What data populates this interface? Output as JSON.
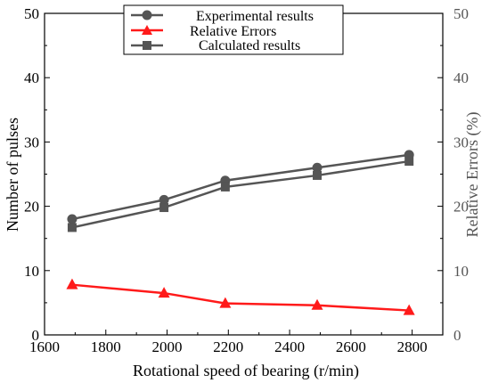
{
  "chart_data": {
    "type": "line",
    "xlabel": "Rotational speed of bearing (r/min)",
    "ylabel_left": "Number of pulses",
    "ylabel_right": "Relative Errors (%)",
    "xlim": [
      1600,
      2900
    ],
    "xticks": [
      1600,
      1800,
      2000,
      2200,
      2400,
      2600,
      2800
    ],
    "ylim_left": [
      0,
      50
    ],
    "ylim_right": [
      0,
      50
    ],
    "yticks": [
      0,
      10,
      20,
      30,
      40,
      50
    ],
    "legend_position": "top-center",
    "grid": false,
    "series": [
      {
        "name": "Experimental results",
        "axis": "left",
        "marker": "circle",
        "color": "#555555",
        "x": [
          1690,
          1990,
          2190,
          2490,
          2790
        ],
        "y": [
          18,
          21,
          24,
          26,
          28
        ]
      },
      {
        "name": "Relative Errors",
        "axis": "right",
        "marker": "triangle",
        "color": "#ff1a1a",
        "x": [
          1690,
          1990,
          2190,
          2490,
          2790
        ],
        "y": [
          7.8,
          6.5,
          4.9,
          4.6,
          3.8
        ]
      },
      {
        "name": "Calculated results",
        "axis": "left",
        "marker": "square",
        "color": "#555555",
        "x": [
          1690,
          1990,
          2190,
          2490,
          2790
        ],
        "y": [
          16.7,
          19.8,
          23,
          24.8,
          27
        ]
      }
    ]
  }
}
